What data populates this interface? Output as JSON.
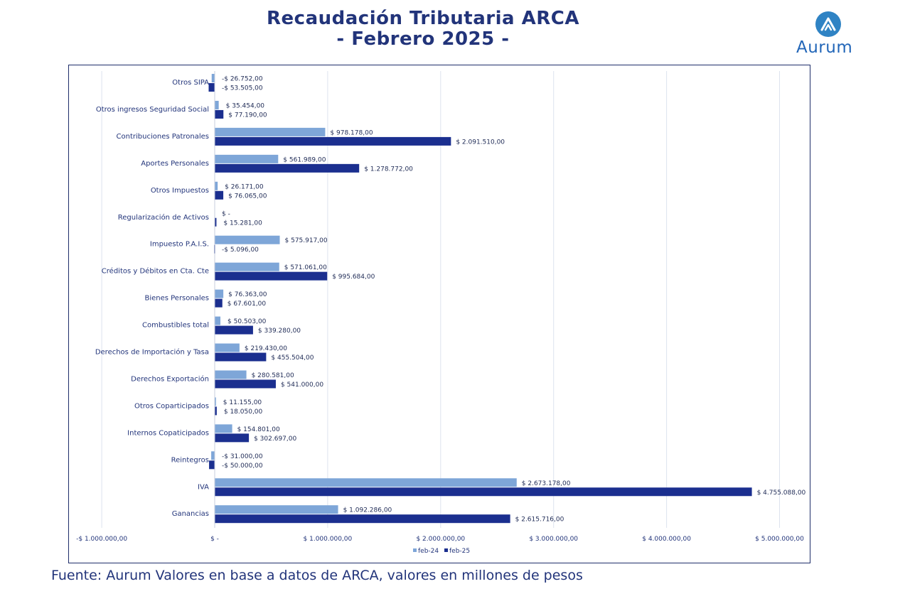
{
  "header": {
    "title_line1": "Recaudación Tributaria ARCA",
    "title_line2": "- Febrero 2025 -",
    "logo_text": "Aurum"
  },
  "footer": {
    "source": "Fuente: Aurum Valores en base a datos de ARCA, valores en millones de pesos"
  },
  "colors": {
    "feb24": "#7ea6d8",
    "feb25": "#1b2f8f",
    "grid": "#dde3ee",
    "text": "#22347a"
  },
  "chart_data": {
    "type": "bar",
    "orientation": "horizontal",
    "title": "Recaudación Tributaria ARCA - Febrero 2025 -",
    "xlim": [
      -1000000,
      5000000
    ],
    "x_ticks": [
      -1000000,
      0,
      1000000,
      2000000,
      3000000,
      4000000,
      5000000
    ],
    "x_tick_labels": [
      "-$ 1.000.000,00",
      "$ -",
      "$ 1.000.000,00",
      "$ 2.000.000,00",
      "$ 3.000.000,00",
      "$ 4.000.000,00",
      "$ 5.000.000,00"
    ],
    "grid": true,
    "legend_position": "bottom",
    "categories": [
      "Otros SIPA",
      "Otros ingresos Seguridad Social",
      "Contribuciones Patronales",
      "Aportes Personales",
      "Otros Impuestos",
      "Regularización de Activos",
      "Impuesto P.A.I.S.",
      "Créditos y Débitos en Cta. Cte",
      "Bienes Personales",
      "Combustibles total",
      "Derechos de Importación y Tasa",
      "Derechos Exportación",
      "Otros Coparticipados",
      "Internos Copaticipados",
      "Reintegros",
      "IVA",
      "Ganancias"
    ],
    "series": [
      {
        "name": "feb-24",
        "values": [
          -26752,
          35454,
          978178,
          561989,
          26171,
          0,
          575917,
          571061,
          76363,
          50503,
          219430,
          280581,
          11155,
          154801,
          -31000,
          2673178,
          1092286
        ],
        "labels": [
          "-$ 26.752,00",
          "$ 35.454,00",
          "$ 978.178,00",
          "$ 561.989,00",
          "$ 26.171,00",
          "$ -",
          "$ 575.917,00",
          "$ 571.061,00",
          "$ 76.363,00",
          "$ 50.503,00",
          "$ 219.430,00",
          "$ 280.581,00",
          "$ 11.155,00",
          "$ 154.801,00",
          "-$ 31.000,00",
          "$ 2.673.178,00",
          "$ 1.092.286,00"
        ]
      },
      {
        "name": "feb-25",
        "values": [
          -53505,
          77190,
          2091510,
          1278772,
          76065,
          15281,
          -5096,
          995684,
          67601,
          339280,
          455504,
          541000,
          18050,
          302697,
          -50000,
          4755088,
          2615716
        ],
        "labels": [
          "-$ 53.505,00",
          "$ 77.190,00",
          "$ 2.091.510,00",
          "$ 1.278.772,00",
          "$ 76.065,00",
          "$ 15.281,00",
          "-$ 5.096,00",
          "$ 995.684,00",
          "$ 67.601,00",
          "$ 339.280,00",
          "$ 455.504,00",
          "$ 541.000,00",
          "$ 18.050,00",
          "$ 302.697,00",
          "-$ 50.000,00",
          "$ 4.755.088,00",
          "$ 2.615.716,00"
        ]
      }
    ]
  }
}
